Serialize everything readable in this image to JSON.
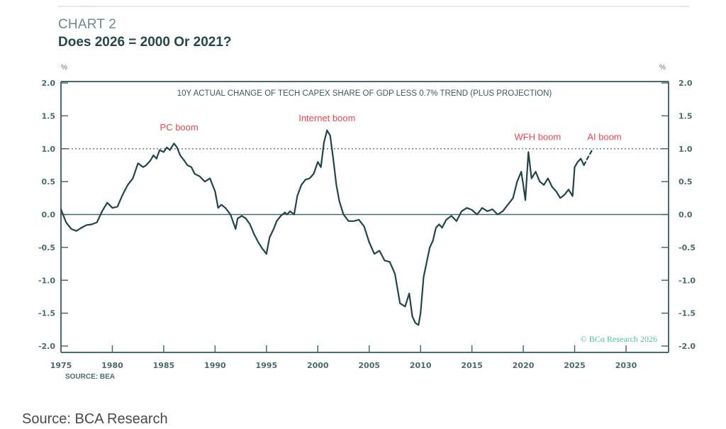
{
  "header": {
    "chart_label": "CHART 2",
    "title": "Does 2026 = 2000 Or 2021?"
  },
  "footer": {
    "source_inner": "SOURCE: BEA",
    "source_outer": "Source: BCA Research",
    "copyright": "© BCα Research 2026"
  },
  "colors": {
    "line": "#22454a",
    "axis": "#4a6a6e",
    "annotation": "#f0464b",
    "copyright": "#4fc3a6"
  },
  "chart_data": {
    "type": "line",
    "title": "Does 2026 = 2000 Or 2021?",
    "subtitle": "10Y ACTUAL CHANGE OF TECH CAPEX SHARE OF GDP LESS 0.7% TREND (PLUS PROJECTION)",
    "xlabel": "",
    "ylabel_left": "%",
    "ylabel_right": "%",
    "xlim": [
      1975,
      2034
    ],
    "ylim": [
      -2.0,
      2.0
    ],
    "x_ticks": [
      1975,
      1980,
      1985,
      1990,
      1995,
      2000,
      2005,
      2010,
      2015,
      2020,
      2025,
      2030
    ],
    "x_tick_labels": [
      "1975",
      "1980",
      "1985",
      "1990",
      "1995",
      "2000",
      "2005",
      "2010",
      "2015",
      "2020",
      "2025",
      "2030"
    ],
    "y_ticks": [
      2.0,
      1.5,
      1.0,
      0.5,
      0.0,
      -0.5,
      -1.0,
      -1.5,
      -2.0
    ],
    "y_tick_labels": [
      "2.0",
      "1.5",
      "1.0",
      "0.5",
      "0.0",
      "-0.5",
      "-1.0",
      "-1.5",
      "-2.0"
    ],
    "reference_lines": [
      {
        "y": 1.0,
        "style": "dotted"
      },
      {
        "y": 0.0,
        "style": "solid"
      }
    ],
    "series": [
      {
        "name": "Actual",
        "style": "solid",
        "x": [
          1975.0,
          1975.5,
          1976.0,
          1976.5,
          1977.0,
          1977.5,
          1978.0,
          1978.5,
          1979.0,
          1979.5,
          1980.0,
          1980.5,
          1981.0,
          1981.5,
          1982.0,
          1982.5,
          1983.0,
          1983.3,
          1983.7,
          1984.0,
          1984.3,
          1984.6,
          1985.0,
          1985.3,
          1985.6,
          1986.0,
          1986.3,
          1986.6,
          1987.0,
          1987.3,
          1987.7,
          1988.0,
          1988.5,
          1989.0,
          1989.5,
          1990.0,
          1990.3,
          1990.6,
          1991.0,
          1991.5,
          1992.0,
          1992.2,
          1992.6,
          1993.0,
          1993.4,
          1993.8,
          1994.2,
          1994.6,
          1995.0,
          1995.3,
          1995.7,
          1996.0,
          1996.4,
          1996.8,
          1997.0,
          1997.3,
          1997.7,
          1998.0,
          1998.4,
          1998.8,
          1999.2,
          1999.6,
          2000.0,
          2000.3,
          2000.6,
          2000.9,
          2001.2,
          2001.5,
          2001.8,
          2002.1,
          2002.5,
          2003.0,
          2003.5,
          2004.0,
          2004.5,
          2005.0,
          2005.5,
          2006.0,
          2006.5,
          2007.0,
          2007.5,
          2008.0,
          2008.5,
          2008.9,
          2009.2,
          2009.5,
          2009.8,
          2010.0,
          2010.3,
          2010.6,
          2010.9,
          2011.2,
          2011.5,
          2011.8,
          2012.1,
          2012.5,
          2013.0,
          2013.5,
          2014.0,
          2014.5,
          2015.0,
          2015.5,
          2016.0,
          2016.5,
          2017.0,
          2017.5,
          2018.0,
          2018.5,
          2019.0,
          2019.4,
          2019.8,
          2020.0,
          2020.2,
          2020.5,
          2020.8,
          2021.2,
          2021.6,
          2022.0,
          2022.4,
          2022.8,
          2023.2,
          2023.6,
          2024.0,
          2024.4,
          2024.8,
          2025.0,
          2025.3,
          2025.6,
          2025.9
        ],
        "values": [
          0.08,
          -0.12,
          -0.22,
          -0.25,
          -0.2,
          -0.16,
          -0.15,
          -0.12,
          0.05,
          0.18,
          0.1,
          0.12,
          0.3,
          0.45,
          0.55,
          0.78,
          0.72,
          0.75,
          0.82,
          0.9,
          0.85,
          0.98,
          0.95,
          1.02,
          0.98,
          1.08,
          1.02,
          0.9,
          0.82,
          0.75,
          0.72,
          0.62,
          0.58,
          0.5,
          0.55,
          0.35,
          0.1,
          0.15,
          0.1,
          0.0,
          -0.22,
          -0.06,
          -0.02,
          -0.06,
          -0.15,
          -0.3,
          -0.42,
          -0.52,
          -0.6,
          -0.35,
          -0.22,
          -0.1,
          -0.02,
          0.03,
          0.0,
          0.05,
          0.0,
          0.28,
          0.45,
          0.53,
          0.55,
          0.62,
          0.8,
          0.72,
          1.1,
          1.28,
          1.2,
          0.85,
          0.45,
          0.2,
          0.0,
          -0.1,
          -0.1,
          -0.08,
          -0.18,
          -0.42,
          -0.6,
          -0.55,
          -0.7,
          -0.72,
          -0.9,
          -1.35,
          -1.4,
          -1.2,
          -1.55,
          -1.65,
          -1.68,
          -1.5,
          -0.95,
          -0.72,
          -0.5,
          -0.4,
          -0.2,
          -0.15,
          -0.2,
          -0.08,
          -0.02,
          -0.1,
          0.05,
          0.1,
          0.07,
          0.0,
          0.1,
          0.05,
          0.08,
          0.0,
          0.05,
          0.15,
          0.25,
          0.5,
          0.65,
          0.45,
          0.22,
          0.95,
          0.55,
          0.65,
          0.5,
          0.45,
          0.55,
          0.42,
          0.35,
          0.25,
          0.3,
          0.38,
          0.28,
          0.72,
          0.8,
          0.85,
          0.75
        ]
      },
      {
        "name": "Projection",
        "style": "dashed",
        "x": [
          2025.9,
          2026.3,
          2026.7
        ],
        "values": [
          0.75,
          0.87,
          0.98
        ]
      }
    ],
    "annotations": [
      {
        "text": "PC boom",
        "x": 1986.5,
        "y": 1.28
      },
      {
        "text": "Internet boom",
        "x": 2000.9,
        "y": 1.42
      },
      {
        "text": "WFH boom",
        "x": 2021.4,
        "y": 1.13
      },
      {
        "text": "AI boom",
        "x": 2027.9,
        "y": 1.13
      }
    ],
    "grid": false,
    "legend": "none"
  }
}
